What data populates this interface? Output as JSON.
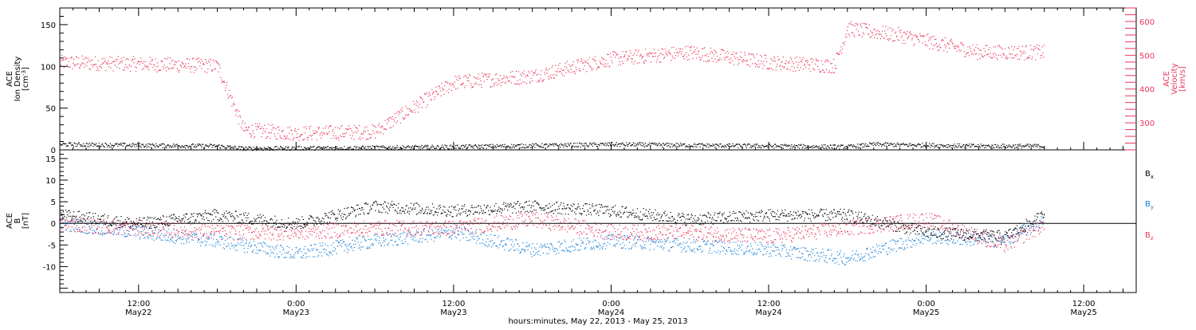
{
  "chart_data": [
    {
      "type": "scatter",
      "x_range": [
        "2013-05-22 06:00",
        "2013-05-25 16:00"
      ],
      "xlabel": "hours:minutes, May 22, 2013 - May 25, 2013",
      "x_ticks": [
        {
          "time": "12:00",
          "date": "May22"
        },
        {
          "time": "0:00",
          "date": "May23"
        },
        {
          "time": "12:00",
          "date": "May23"
        },
        {
          "time": "0:00",
          "date": "May24"
        },
        {
          "time": "12:00",
          "date": "May24"
        },
        {
          "time": "0:00",
          "date": "May25"
        },
        {
          "time": "12:00",
          "date": "May25"
        }
      ],
      "ylabel_left": [
        "ACE",
        "Ion Density",
        "[cm^-3]"
      ],
      "ylim_left": [
        0,
        170
      ],
      "yticks_left": [
        "0",
        "50",
        "100",
        "150"
      ],
      "ylabel_right": [
        "ACE",
        "Velocity",
        "[km/s]"
      ],
      "ylim_right": [
        220,
        640
      ],
      "yticks_right": [
        "300",
        "400",
        "500",
        "600"
      ],
      "series": [
        {
          "color": "#000000",
          "axis": "left",
          "x": [
            "2013-05-22 06:00",
            "2013-05-22 18:00",
            "2013-05-22 20:00",
            "2013-05-23 06:00",
            "2013-05-23 12:00",
            "2013-05-24 00:00",
            "2013-05-24 12:00",
            "2013-05-24 18:00",
            "2013-05-24 20:00",
            "2013-05-25 00:00",
            "2013-05-25 04:00",
            "2013-05-25 09:00"
          ],
          "y": [
            7,
            5,
            2,
            3,
            4,
            7,
            5,
            4,
            7,
            6,
            5,
            5
          ]
        },
        {
          "color": "#e8365d",
          "axis": "right",
          "x": [
            "2013-05-22 06:00",
            "2013-05-22 18:00",
            "2013-05-22 20:00",
            "2013-05-23 00:00",
            "2013-05-23 06:00",
            "2013-05-23 12:00",
            "2013-05-23 18:00",
            "2013-05-24 00:00",
            "2013-05-24 06:00",
            "2013-05-24 12:00",
            "2013-05-24 17:00",
            "2013-05-24 18:00",
            "2013-05-24 22:00",
            "2013-05-25 04:00",
            "2013-05-25 09:00"
          ],
          "y": [
            480,
            470,
            280,
            270,
            275,
            420,
            440,
            490,
            510,
            480,
            470,
            580,
            560,
            510,
            510
          ]
        }
      ]
    },
    {
      "type": "scatter",
      "x_range": [
        "2013-05-22 06:00",
        "2013-05-25 16:00"
      ],
      "ylabel": [
        "ACE",
        "B",
        "[nT]"
      ],
      "ylim": [
        -16,
        17
      ],
      "yticks": [
        "-10",
        "-5",
        "0",
        "5",
        "10",
        "15"
      ],
      "zero_line": true,
      "legend": [
        {
          "label": "Bx",
          "color": "#000000"
        },
        {
          "label": "By",
          "color": "#1a82d8"
        },
        {
          "label": "Bz",
          "color": "#e8365d"
        }
      ],
      "series": [
        {
          "color": "#000000",
          "x": [
            "2013-05-22 06:00",
            "2013-05-22 12:00",
            "2013-05-22 18:00",
            "2013-05-23 00:00",
            "2013-05-23 06:00",
            "2013-05-23 12:00",
            "2013-05-23 18:00",
            "2013-05-24 00:00",
            "2013-05-24 06:00",
            "2013-05-24 12:00",
            "2013-05-24 18:00",
            "2013-05-25 00:00",
            "2013-05-25 06:00",
            "2013-05-25 09:00"
          ],
          "y": [
            2,
            0,
            2,
            0,
            4,
            3,
            4,
            3,
            1,
            2,
            2,
            -2,
            -3,
            2
          ]
        },
        {
          "color": "#1a82d8",
          "x": [
            "2013-05-22 06:00",
            "2013-05-22 12:00",
            "2013-05-22 18:00",
            "2013-05-23 00:00",
            "2013-05-23 06:00",
            "2013-05-23 12:00",
            "2013-05-23 18:00",
            "2013-05-24 00:00",
            "2013-05-24 06:00",
            "2013-05-24 12:00",
            "2013-05-24 18:00",
            "2013-05-25 00:00",
            "2013-05-25 06:00",
            "2013-05-25 09:00"
          ],
          "y": [
            0,
            -2,
            -4,
            -7,
            -4,
            -2,
            -6,
            -4,
            -5,
            -6,
            -8,
            -3,
            -4,
            1
          ]
        },
        {
          "color": "#e8365d",
          "x": [
            "2013-05-22 06:00",
            "2013-05-22 12:00",
            "2013-05-22 18:00",
            "2013-05-23 00:00",
            "2013-05-23 06:00",
            "2013-05-23 12:00",
            "2013-05-23 18:00",
            "2013-05-24 00:00",
            "2013-05-24 06:00",
            "2013-05-24 12:00",
            "2013-05-24 18:00",
            "2013-05-25 00:00",
            "2013-05-25 06:00",
            "2013-05-25 09:00"
          ],
          "y": [
            0,
            -1,
            -2,
            -2,
            -1,
            -1,
            1,
            -2,
            -2,
            -3,
            -1,
            1,
            -5,
            0
          ]
        }
      ]
    }
  ]
}
